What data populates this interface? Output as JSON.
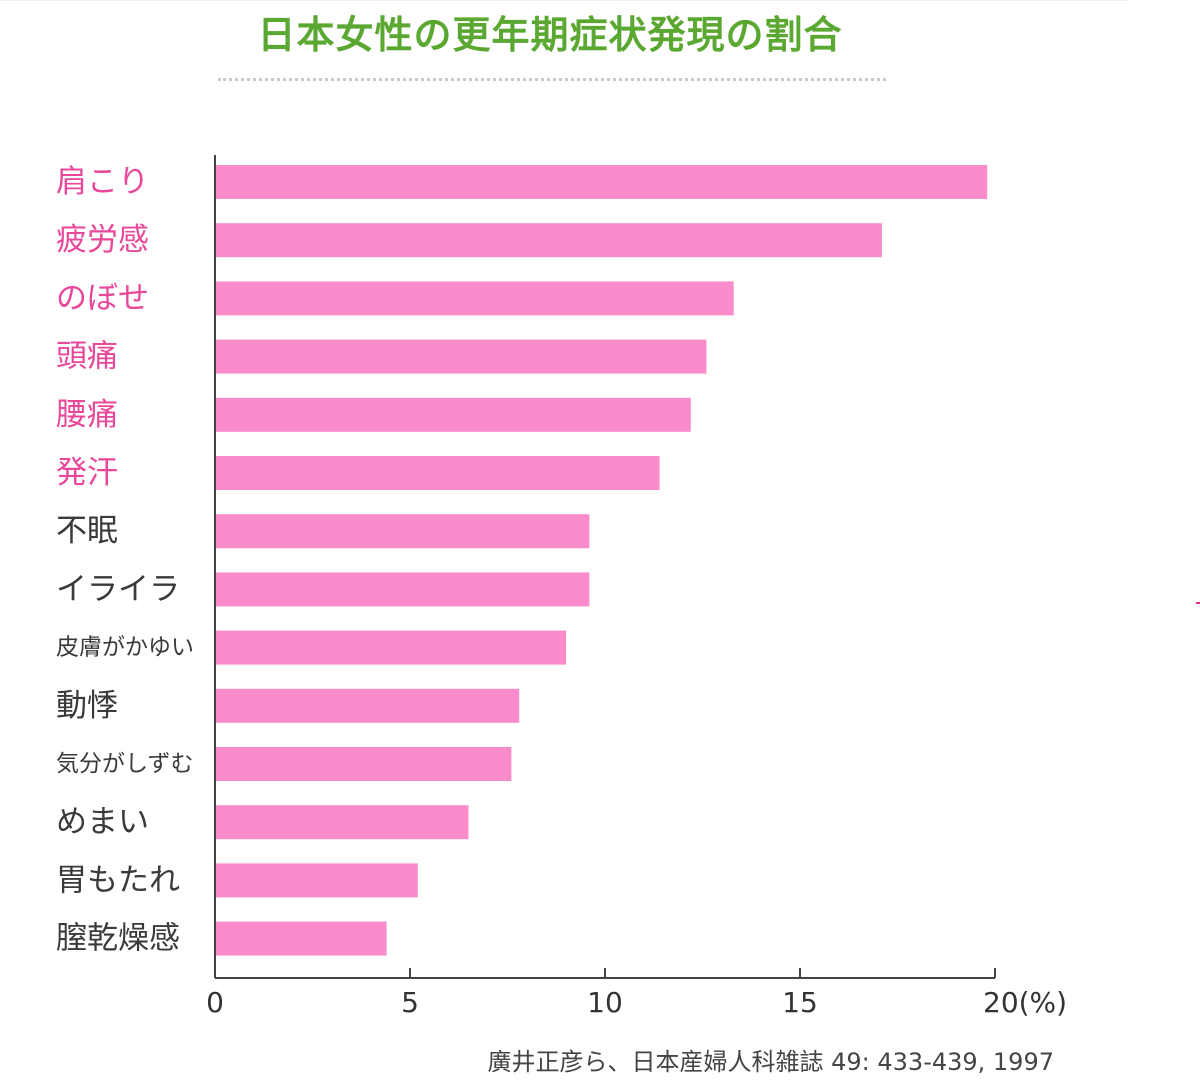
{
  "title": "日本女性の更年期症状発現の割合",
  "source": "廣井正彦ら、日本産婦人科雑誌 49: 433-439, 1997",
  "chart_data": {
    "type": "bar",
    "orientation": "horizontal",
    "categories": [
      "肩こり",
      "疲労感",
      "のぼせ",
      "頭痛",
      "腰痛",
      "発汗",
      "不眠",
      "イライラ",
      "皮膚がかゆい",
      "動悸",
      "気分がしずむ",
      "めまい",
      "胃もたれ",
      "膣乾燥感"
    ],
    "values": [
      19.8,
      17.1,
      13.3,
      12.6,
      12.2,
      11.4,
      9.6,
      9.6,
      9.0,
      7.8,
      7.6,
      6.5,
      5.2,
      4.4
    ],
    "highlighted_categories": [
      "肩こり",
      "疲労感",
      "のぼせ",
      "頭痛",
      "腰痛",
      "発汗"
    ],
    "xlim": [
      0,
      20
    ],
    "xticks": [
      0,
      5,
      10,
      15,
      20
    ],
    "xtick_labels": [
      "0",
      "5",
      "10",
      "15",
      "20(%)"
    ],
    "grid": false,
    "colors": {
      "bar": "#fb8ccb",
      "highlight_label": "#e8479a",
      "normal_label": "#3a3a3a",
      "axis": "#444444",
      "title": "#5aa832"
    }
  }
}
